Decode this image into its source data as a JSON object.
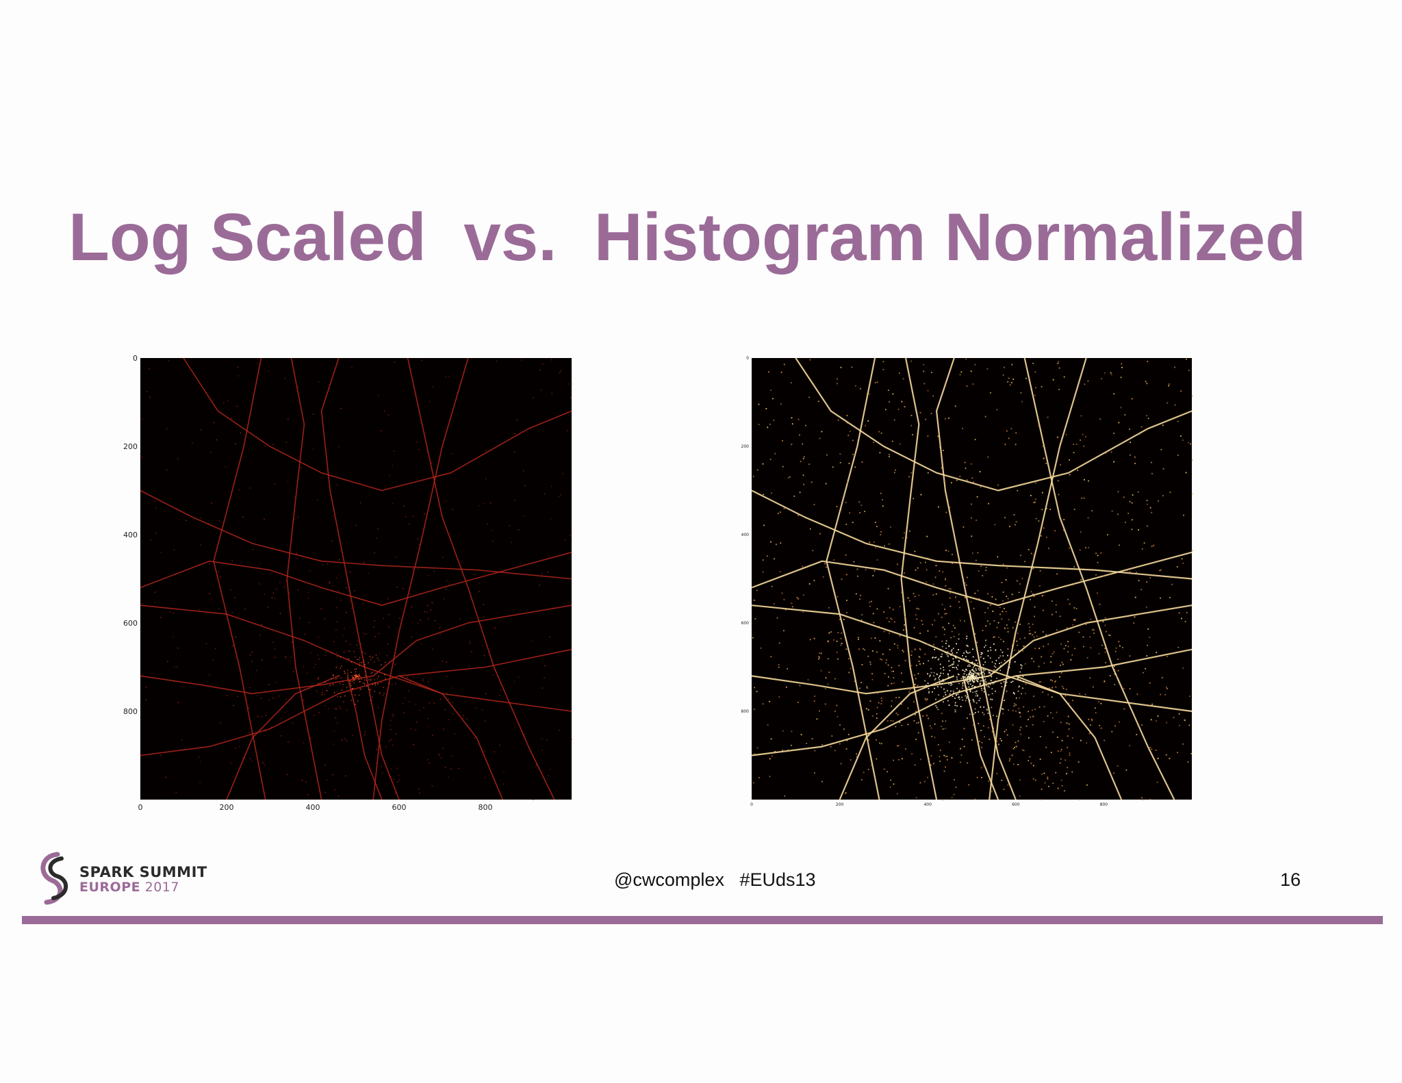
{
  "slide": {
    "title": "Log Scaled  vs.  Histogram Normalized",
    "handle": "@cwcomplex   #EUds13",
    "page_number": "16",
    "logo": {
      "line1": "SPARK SUMMIT",
      "line2_bold": "EUROPE",
      "line2_rest": " 2017"
    }
  },
  "colors": {
    "accent": "#9b6b98",
    "plot_background": "#050000",
    "log_road": "#c0281c",
    "hist_road": "#f5d89a"
  },
  "plots": [
    {
      "name": "log-scaled",
      "x_ticks": [
        "0",
        "200",
        "400",
        "600",
        "800"
      ],
      "y_ticks": [
        "0",
        "200",
        "400",
        "600",
        "800"
      ],
      "x_tick_values": [
        0,
        200,
        400,
        600,
        800
      ],
      "y_tick_values": [
        0,
        200,
        400,
        600,
        800
      ],
      "xlim": [
        0,
        1000
      ],
      "ylim": [
        0,
        1000
      ]
    },
    {
      "name": "histogram-normalized",
      "x_ticks": [
        "0",
        "200",
        "400",
        "600",
        "800"
      ],
      "y_ticks": [
        "0",
        "200",
        "400",
        "600",
        "800"
      ],
      "x_tick_values": [
        0,
        200,
        400,
        600,
        800
      ],
      "y_tick_values": [
        0,
        200,
        400,
        600,
        800
      ],
      "xlim": [
        0,
        1000
      ],
      "ylim": [
        0,
        1000
      ]
    }
  ]
}
